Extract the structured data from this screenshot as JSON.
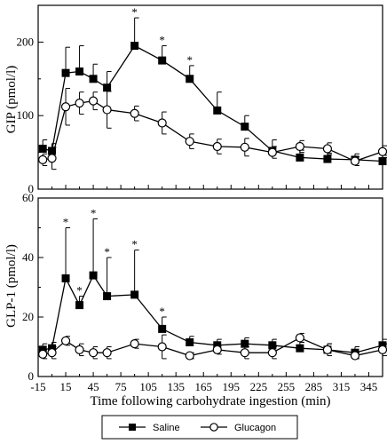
{
  "chart_data": [
    {
      "type": "line",
      "ylabel": "GIP (pmol/l)",
      "ylim": [
        0,
        250
      ],
      "yticks": [
        0,
        100,
        200
      ],
      "xlim": [
        -15,
        360
      ],
      "series": [
        {
          "name": "Saline",
          "x": [
            -10,
            0,
            15,
            30,
            45,
            60,
            90,
            120,
            150,
            180,
            210,
            240,
            270,
            300,
            330,
            360
          ],
          "y": [
            55,
            52,
            158,
            160,
            150,
            138,
            195,
            175,
            150,
            107,
            85,
            52,
            43,
            41,
            40,
            38
          ],
          "err": [
            12,
            10,
            35,
            35,
            20,
            22,
            38,
            20,
            18,
            25,
            15,
            15,
            10,
            8,
            8,
            8
          ]
        },
        {
          "name": "Glucagon",
          "x": [
            -10,
            0,
            15,
            30,
            45,
            60,
            90,
            120,
            150,
            180,
            210,
            240,
            270,
            300,
            330,
            360
          ],
          "y": [
            40,
            42,
            112,
            117,
            120,
            108,
            103,
            90,
            65,
            58,
            57,
            50,
            58,
            55,
            38,
            51
          ],
          "err": [
            8,
            15,
            25,
            15,
            12,
            25,
            10,
            15,
            10,
            10,
            12,
            8,
            8,
            8,
            6,
            8
          ]
        }
      ],
      "significant_x": [
        90,
        120,
        150
      ],
      "significance_mark": "*"
    },
    {
      "type": "line",
      "ylabel": "GLP-1 (pmol/l)",
      "xlabel": "Time following carbohydrate ingestion (min)",
      "ylim": [
        0,
        60
      ],
      "yticks": [
        0,
        20,
        40,
        60
      ],
      "xlim": [
        -15,
        360
      ],
      "xticks": [
        -15,
        15,
        45,
        75,
        105,
        135,
        165,
        195,
        225,
        255,
        285,
        315,
        345
      ],
      "series": [
        {
          "name": "Saline",
          "x": [
            -10,
            0,
            15,
            30,
            45,
            60,
            90,
            120,
            150,
            180,
            210,
            240,
            270,
            300,
            330,
            360
          ],
          "y": [
            9,
            9.5,
            33,
            24,
            34,
            27,
            27.5,
            16,
            11.5,
            10.5,
            11,
            10.5,
            9.5,
            9,
            8,
            10.5
          ],
          "err": [
            2,
            2,
            17,
            3,
            19,
            13,
            15,
            4,
            2,
            2,
            2,
            2,
            2,
            2,
            2,
            2
          ]
        },
        {
          "name": "Glucagon",
          "x": [
            -10,
            0,
            15,
            30,
            45,
            60,
            90,
            120,
            150,
            180,
            210,
            240,
            270,
            300,
            330,
            360
          ],
          "y": [
            7.5,
            8,
            12,
            9,
            8,
            8,
            11,
            10,
            7,
            9,
            8,
            8,
            13,
            9,
            7,
            9
          ],
          "err": [
            1.5,
            2,
            1.5,
            2,
            2,
            2,
            1.5,
            4,
            1,
            1.5,
            2,
            2,
            1.5,
            2,
            1,
            2
          ]
        }
      ],
      "significant_x": [
        15,
        30,
        45,
        60,
        90,
        120
      ],
      "significance_mark": "*"
    }
  ],
  "legend": [
    {
      "name": "Saline",
      "marker": "filled-square"
    },
    {
      "name": "Glucagon",
      "marker": "open-circle"
    }
  ]
}
